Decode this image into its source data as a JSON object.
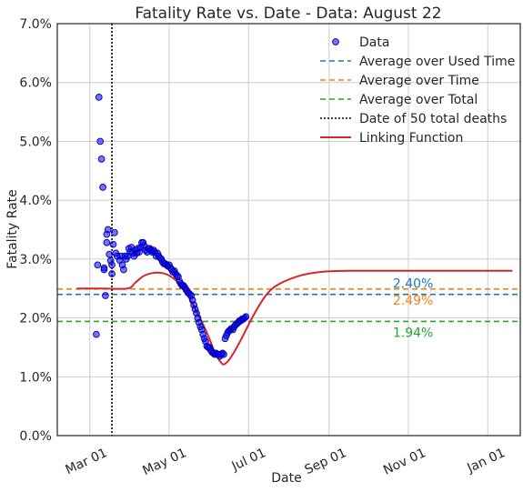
{
  "chart_data": {
    "type": "scatter",
    "title": "Fatality Rate vs. Date - Data: August 22",
    "xlabel": "Date",
    "ylabel": "Fatality Rate",
    "xlim": [
      "2020-02-05",
      "2021-01-26"
    ],
    "ylim": [
      0,
      7
    ],
    "y_ticks": [
      0,
      1,
      2,
      3,
      4,
      5,
      6,
      7
    ],
    "y_tick_labels": [
      "0.0%",
      "1.0%",
      "2.0%",
      "3.0%",
      "4.0%",
      "5.0%",
      "6.0%",
      "7.0%"
    ],
    "x_ticks": [
      "2020-03-01",
      "2020-05-01",
      "2020-07-01",
      "2020-09-01",
      "2020-11-01",
      "2021-01-01"
    ],
    "x_tick_labels": [
      "Mar 01",
      "May 01",
      "Jul 01",
      "Sep 01",
      "Nov 01",
      "Jan 01"
    ],
    "grid": true,
    "legend_position": "top-right",
    "colors": {
      "data": "#0000ff",
      "avg_used_time": "#1f77b4",
      "avg_time": "#ff7f0e",
      "avg_total": "#2ca02c",
      "deaths_line": "#000000",
      "linking": "#d62728"
    },
    "legend": [
      {
        "label": "Data",
        "kind": "marker",
        "color_key": "data"
      },
      {
        "label": "Average over Used Time",
        "kind": "dashed",
        "color_key": "avg_used_time"
      },
      {
        "label": "Average over Time",
        "kind": "dashed",
        "color_key": "avg_time"
      },
      {
        "label": "Average over Total",
        "kind": "dashed",
        "color_key": "avg_total"
      },
      {
        "label": "Date of 50 total deaths",
        "kind": "dotted",
        "color_key": "deaths_line"
      },
      {
        "label": "Linking Function",
        "kind": "solid",
        "color_key": "linking"
      }
    ],
    "hlines": [
      {
        "name": "Average over Used Time",
        "y": 2.4,
        "color_key": "avg_used_time",
        "annotation": "2.40%",
        "annot_x": "2020-10-20",
        "annot_offset": -1
      },
      {
        "name": "Average over Time",
        "y": 2.49,
        "color_key": "avg_time",
        "annotation": "2.49%",
        "annot_x": "2020-10-20",
        "annot_offset": 1
      },
      {
        "name": "Average over Total",
        "y": 1.94,
        "color_key": "avg_total",
        "annotation": "1.94%",
        "annot_x": "2020-10-20",
        "annot_offset": 1
      }
    ],
    "vline": {
      "name": "Date of 50 total deaths",
      "x": "2020-03-18"
    },
    "scatter": {
      "name": "Data",
      "points": [
        [
          "2020-03-06",
          1.72
        ],
        [
          "2020-03-07",
          2.9
        ],
        [
          "2020-03-08",
          5.75
        ],
        [
          "2020-03-09",
          5.0
        ],
        [
          "2020-03-10",
          4.7
        ],
        [
          "2020-03-11",
          4.22
        ],
        [
          "2020-03-12",
          2.85
        ],
        [
          "2020-03-12",
          2.82
        ],
        [
          "2020-03-13",
          2.38
        ],
        [
          "2020-03-14",
          3.28
        ],
        [
          "2020-03-14",
          3.42
        ],
        [
          "2020-03-15",
          3.5
        ],
        [
          "2020-03-16",
          3.08
        ],
        [
          "2020-03-17",
          2.97
        ],
        [
          "2020-03-18",
          2.75
        ],
        [
          "2020-03-18",
          2.9
        ],
        [
          "2020-03-19",
          3.25
        ],
        [
          "2020-03-20",
          3.45
        ],
        [
          "2020-03-21",
          3.1
        ],
        [
          "2020-03-22",
          3.05
        ],
        [
          "2020-03-24",
          2.98
        ],
        [
          "2020-03-25",
          3.05
        ],
        [
          "2020-03-26",
          2.9
        ],
        [
          "2020-03-27",
          2.82
        ],
        [
          "2020-03-28",
          3.05
        ],
        [
          "2020-03-29",
          3.0
        ],
        [
          "2020-03-30",
          3.05
        ],
        [
          "2020-03-31",
          3.18
        ],
        [
          "2020-04-01",
          3.12
        ],
        [
          "2020-04-02",
          3.2
        ],
        [
          "2020-04-03",
          3.1
        ],
        [
          "2020-04-04",
          3.05
        ],
        [
          "2020-04-05",
          3.15
        ],
        [
          "2020-04-06",
          3.1
        ],
        [
          "2020-04-07",
          3.18
        ],
        [
          "2020-04-08",
          3.12
        ],
        [
          "2020-04-09",
          3.2
        ],
        [
          "2020-04-10",
          3.28
        ],
        [
          "2020-04-11",
          3.28
        ],
        [
          "2020-04-12",
          3.22
        ],
        [
          "2020-04-13",
          3.15
        ],
        [
          "2020-04-14",
          3.12
        ],
        [
          "2020-04-15",
          3.18
        ],
        [
          "2020-04-16",
          3.18
        ],
        [
          "2020-04-17",
          3.15
        ],
        [
          "2020-04-18",
          3.12
        ],
        [
          "2020-04-19",
          3.15
        ],
        [
          "2020-04-20",
          3.12
        ],
        [
          "2020-04-21",
          3.05
        ],
        [
          "2020-04-22",
          3.1
        ],
        [
          "2020-04-23",
          3.05
        ],
        [
          "2020-04-24",
          3.02
        ],
        [
          "2020-04-25",
          3.0
        ],
        [
          "2020-04-26",
          2.95
        ],
        [
          "2020-04-27",
          2.92
        ],
        [
          "2020-04-28",
          2.92
        ],
        [
          "2020-04-29",
          2.9
        ],
        [
          "2020-04-30",
          2.88
        ],
        [
          "2020-05-01",
          2.9
        ],
        [
          "2020-05-02",
          2.85
        ],
        [
          "2020-05-03",
          2.82
        ],
        [
          "2020-05-04",
          2.78
        ],
        [
          "2020-05-05",
          2.8
        ],
        [
          "2020-05-06",
          2.75
        ],
        [
          "2020-05-07",
          2.72
        ],
        [
          "2020-05-08",
          2.7
        ],
        [
          "2020-05-09",
          2.62
        ],
        [
          "2020-05-10",
          2.58
        ],
        [
          "2020-05-11",
          2.55
        ],
        [
          "2020-05-12",
          2.55
        ],
        [
          "2020-05-13",
          2.52
        ],
        [
          "2020-05-14",
          2.48
        ],
        [
          "2020-05-15",
          2.45
        ],
        [
          "2020-05-16",
          2.42
        ],
        [
          "2020-05-17",
          2.4
        ],
        [
          "2020-05-18",
          2.38
        ],
        [
          "2020-05-19",
          2.3
        ],
        [
          "2020-05-20",
          2.22
        ],
        [
          "2020-05-21",
          2.15
        ],
        [
          "2020-05-22",
          2.08
        ],
        [
          "2020-05-23",
          2.0
        ],
        [
          "2020-05-24",
          1.92
        ],
        [
          "2020-05-25",
          1.85
        ],
        [
          "2020-05-26",
          1.8
        ],
        [
          "2020-05-27",
          1.72
        ],
        [
          "2020-05-28",
          1.65
        ],
        [
          "2020-05-29",
          1.6
        ],
        [
          "2020-05-30",
          1.52
        ],
        [
          "2020-05-31",
          1.5
        ],
        [
          "2020-06-01",
          1.5
        ],
        [
          "2020-06-02",
          1.45
        ],
        [
          "2020-06-03",
          1.42
        ],
        [
          "2020-06-04",
          1.4
        ],
        [
          "2020-06-05",
          1.38
        ],
        [
          "2020-06-06",
          1.4
        ],
        [
          "2020-06-07",
          1.38
        ],
        [
          "2020-06-08",
          1.38
        ],
        [
          "2020-06-09",
          1.35
        ],
        [
          "2020-06-10",
          1.38
        ],
        [
          "2020-06-11",
          1.4
        ],
        [
          "2020-06-12",
          1.38
        ],
        [
          "2020-06-13",
          1.65
        ],
        [
          "2020-06-14",
          1.7
        ],
        [
          "2020-06-15",
          1.75
        ],
        [
          "2020-06-16",
          1.78
        ],
        [
          "2020-06-17",
          1.8
        ],
        [
          "2020-06-18",
          1.82
        ],
        [
          "2020-06-19",
          1.8
        ],
        [
          "2020-06-20",
          1.85
        ],
        [
          "2020-06-21",
          1.88
        ],
        [
          "2020-06-22",
          1.9
        ],
        [
          "2020-06-23",
          1.92
        ],
        [
          "2020-06-24",
          1.95
        ],
        [
          "2020-06-25",
          1.95
        ],
        [
          "2020-06-26",
          1.98
        ],
        [
          "2020-06-27",
          1.98
        ],
        [
          "2020-06-28",
          2.0
        ],
        [
          "2020-06-29",
          2.02
        ]
      ]
    },
    "linking_function": {
      "name": "Linking Function",
      "points": [
        [
          "2020-02-20",
          2.5
        ],
        [
          "2020-03-10",
          2.5
        ],
        [
          "2020-03-30",
          2.5
        ],
        [
          "2020-04-05",
          2.6
        ],
        [
          "2020-04-12",
          2.72
        ],
        [
          "2020-04-22",
          2.77
        ],
        [
          "2020-05-01",
          2.72
        ],
        [
          "2020-05-10",
          2.55
        ],
        [
          "2020-05-20",
          2.2
        ],
        [
          "2020-05-30",
          1.75
        ],
        [
          "2020-06-05",
          1.42
        ],
        [
          "2020-06-10",
          1.24
        ],
        [
          "2020-06-13",
          1.22
        ],
        [
          "2020-06-18",
          1.35
        ],
        [
          "2020-06-25",
          1.62
        ],
        [
          "2020-07-05",
          2.05
        ],
        [
          "2020-07-15",
          2.4
        ],
        [
          "2020-07-25",
          2.58
        ],
        [
          "2020-08-10",
          2.72
        ],
        [
          "2020-08-25",
          2.78
        ],
        [
          "2020-09-15",
          2.8
        ],
        [
          "2020-10-15",
          2.8
        ],
        [
          "2021-01-20",
          2.8
        ]
      ]
    }
  }
}
